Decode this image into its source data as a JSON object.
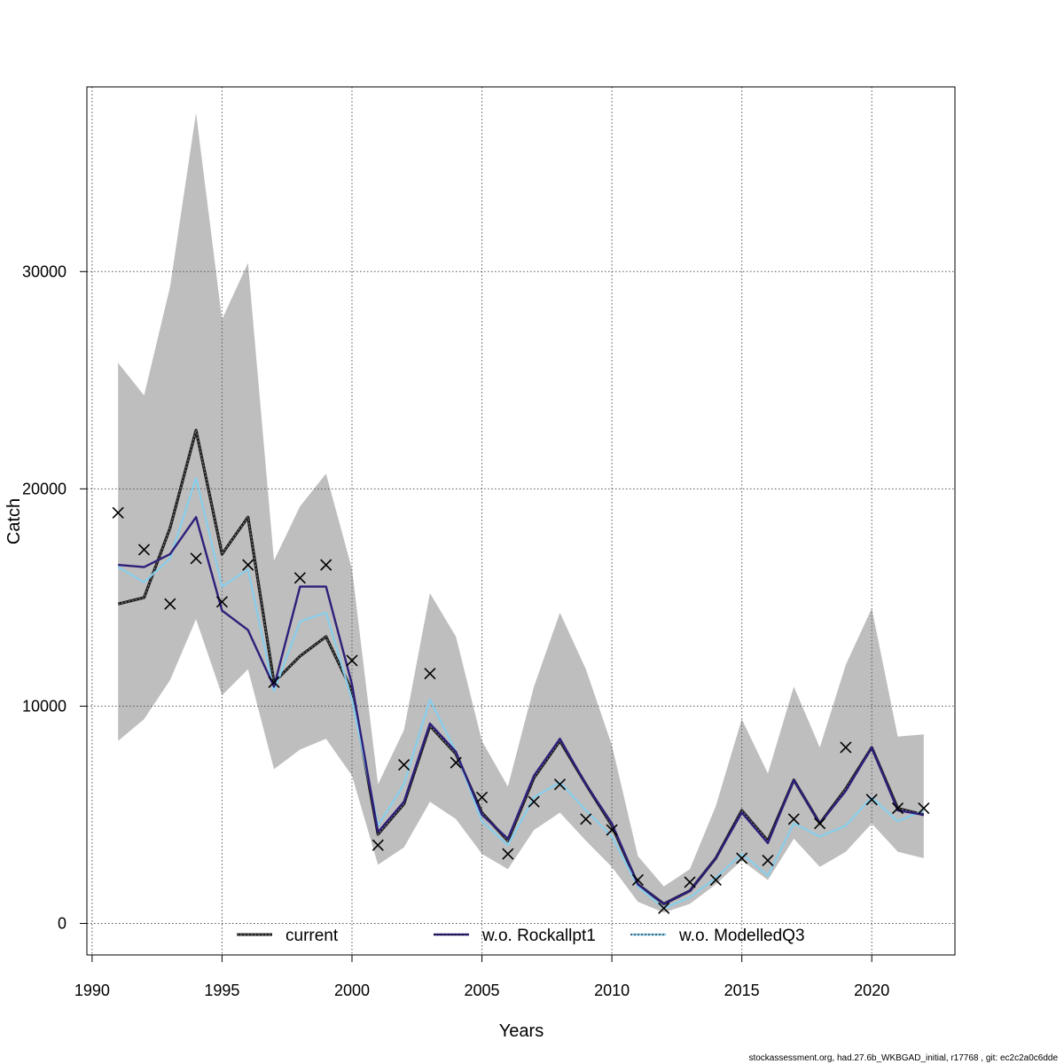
{
  "chart_data": {
    "type": "line",
    "xlabel": "Years",
    "ylabel": "Catch",
    "xlim": [
      1989.8,
      2023.2
    ],
    "ylim": [
      -1450,
      38500
    ],
    "x_ticks": [
      1990,
      1995,
      2000,
      2005,
      2010,
      2015,
      2020
    ],
    "y_ticks": [
      0,
      10000,
      20000,
      30000
    ],
    "grid": true,
    "legend_position": "bottom",
    "x": [
      1991,
      1992,
      1993,
      1994,
      1995,
      1996,
      1997,
      1998,
      1999,
      2000,
      2001,
      2002,
      2003,
      2004,
      2005,
      2006,
      2007,
      2008,
      2009,
      2010,
      2011,
      2012,
      2013,
      2014,
      2015,
      2016,
      2017,
      2018,
      2019,
      2020,
      2021,
      2022
    ],
    "confidence_band": {
      "upper": [
        25800,
        24300,
        29300,
        37300,
        27800,
        30400,
        16700,
        19200,
        20700,
        16300,
        6400,
        8900,
        15200,
        13200,
        8400,
        6300,
        10900,
        14300,
        11700,
        8200,
        3100,
        1700,
        2500,
        5400,
        9400,
        6900,
        10900,
        8100,
        11900,
        14500,
        8600,
        8700
      ],
      "lower": [
        8400,
        9400,
        11200,
        14000,
        10500,
        11700,
        7100,
        8000,
        8500,
        6800,
        2700,
        3500,
        5600,
        4800,
        3200,
        2500,
        4300,
        5100,
        3800,
        2600,
        1000,
        500,
        900,
        1800,
        2900,
        2000,
        3900,
        2600,
        3300,
        4600,
        3300,
        3000
      ]
    },
    "series": [
      {
        "name": "current",
        "color": "#1a1a1a",
        "values": [
          14700,
          15000,
          18200,
          22700,
          17000,
          18700,
          11100,
          12300,
          13200,
          10700,
          4100,
          5500,
          9100,
          7800,
          5100,
          3800,
          6700,
          8400,
          6400,
          4500,
          1800,
          900,
          1500,
          3000,
          5200,
          3800,
          6600,
          4600,
          6200,
          8100,
          5300,
          5000
        ]
      },
      {
        "name": "w.o. Rockallpt1",
        "color": "#2e1e7a",
        "values": [
          16500,
          16400,
          17000,
          18700,
          14400,
          13500,
          10900,
          15500,
          15500,
          11000,
          4200,
          5600,
          9200,
          7900,
          5000,
          3900,
          6800,
          8500,
          6400,
          4600,
          1800,
          900,
          1500,
          3000,
          5100,
          3700,
          6600,
          4600,
          6100,
          8100,
          5200,
          5000
        ]
      },
      {
        "name": "w.o. ModelledQ3",
        "color": "#87ceeb",
        "values": [
          16400,
          15700,
          16800,
          20500,
          15500,
          16300,
          10700,
          13900,
          14300,
          10300,
          4500,
          6400,
          10300,
          7900,
          4700,
          3600,
          5800,
          6500,
          5200,
          4000,
          1700,
          700,
          1200,
          2100,
          3200,
          2200,
          4600,
          4000,
          4500,
          5800,
          4700,
          5200
        ]
      }
    ],
    "observations": {
      "marker": "x",
      "values": [
        18900,
        17200,
        14700,
        16800,
        14800,
        16500,
        11100,
        15900,
        16500,
        12100,
        3600,
        7300,
        11500,
        7400,
        5800,
        3200,
        5600,
        6400,
        4800,
        4300,
        2000,
        700,
        1900,
        2000,
        3000,
        2900,
        4800,
        4600,
        8100,
        5700,
        5300,
        5300
      ]
    },
    "band_color": "#bebebe",
    "footer_text": "stockassessment.org, had.27.6b_WKBGAD_initial, r17768 , git: ec2c2a0c6dde"
  }
}
